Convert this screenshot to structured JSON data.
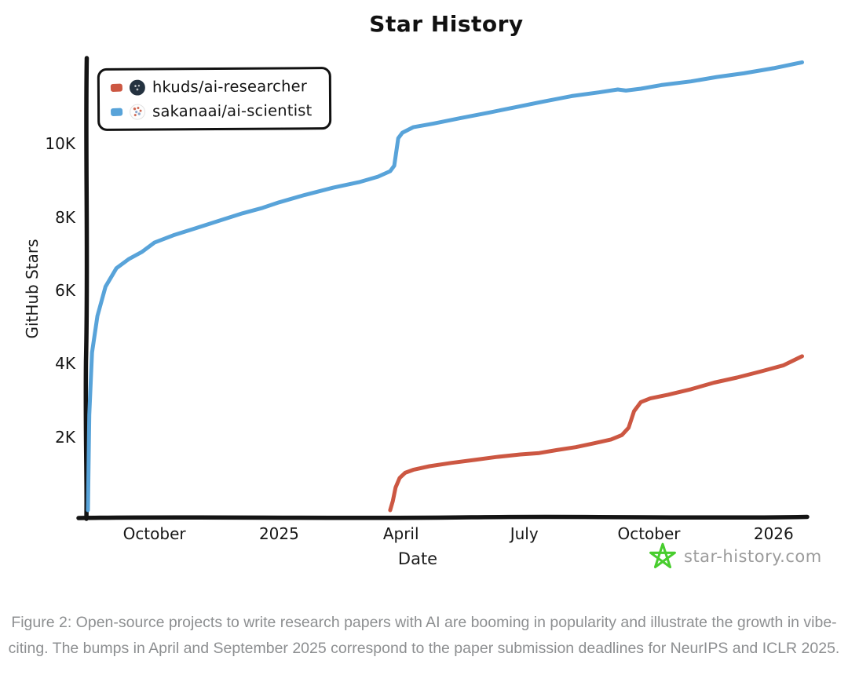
{
  "page": {
    "background": "#ffffff"
  },
  "chart_data": {
    "type": "line",
    "title": "Star History",
    "xlabel": "Date",
    "ylabel": "GitHub Stars",
    "grid": false,
    "legend_position": "top-left",
    "x_domain": [
      "2024-08-13",
      "2026-01-24"
    ],
    "y_domain": [
      0,
      12550
    ],
    "y_ticks": [
      {
        "label": "2K",
        "value": 2000
      },
      {
        "label": "4K",
        "value": 4000
      },
      {
        "label": "6K",
        "value": 6000
      },
      {
        "label": "8K",
        "value": 8000
      },
      {
        "label": "10K",
        "value": 10000
      }
    ],
    "x_ticks": [
      {
        "label": "October",
        "date": "2024-10-01"
      },
      {
        "label": "2025",
        "date": "2025-01-01"
      },
      {
        "label": "April",
        "date": "2025-04-01"
      },
      {
        "label": "July",
        "date": "2025-07-01"
      },
      {
        "label": "October",
        "date": "2025-10-01"
      },
      {
        "label": "2026",
        "date": "2026-01-01"
      }
    ],
    "series": [
      {
        "name": "hkuds/ai-researcher",
        "color": "#cc5742",
        "points": [
          [
            "2025-03-24",
            0
          ],
          [
            "2025-03-26",
            250
          ],
          [
            "2025-03-28",
            620
          ],
          [
            "2025-03-31",
            880
          ],
          [
            "2025-04-04",
            1020
          ],
          [
            "2025-04-10",
            1100
          ],
          [
            "2025-04-22",
            1200
          ],
          [
            "2025-05-08",
            1290
          ],
          [
            "2025-05-25",
            1370
          ],
          [
            "2025-06-10",
            1450
          ],
          [
            "2025-06-28",
            1520
          ],
          [
            "2025-07-12",
            1560
          ],
          [
            "2025-07-25",
            1640
          ],
          [
            "2025-08-08",
            1720
          ],
          [
            "2025-08-22",
            1830
          ],
          [
            "2025-09-03",
            1930
          ],
          [
            "2025-09-11",
            2050
          ],
          [
            "2025-09-16",
            2250
          ],
          [
            "2025-09-20",
            2700
          ],
          [
            "2025-09-25",
            2950
          ],
          [
            "2025-10-02",
            3050
          ],
          [
            "2025-10-15",
            3150
          ],
          [
            "2025-11-01",
            3300
          ],
          [
            "2025-11-18",
            3480
          ],
          [
            "2025-12-05",
            3620
          ],
          [
            "2025-12-22",
            3780
          ],
          [
            "2026-01-08",
            3950
          ],
          [
            "2026-01-22",
            4200
          ]
        ]
      },
      {
        "name": "sakanaai/ai-scientist",
        "color": "#58a3d9",
        "points": [
          [
            "2024-08-13",
            0
          ],
          [
            "2024-08-14",
            2600
          ],
          [
            "2024-08-16",
            4300
          ],
          [
            "2024-08-20",
            5300
          ],
          [
            "2024-08-26",
            6100
          ],
          [
            "2024-09-03",
            6600
          ],
          [
            "2024-09-12",
            6850
          ],
          [
            "2024-09-22",
            7050
          ],
          [
            "2024-10-01",
            7300
          ],
          [
            "2024-10-15",
            7500
          ],
          [
            "2024-11-01",
            7700
          ],
          [
            "2024-11-18",
            7900
          ],
          [
            "2024-12-05",
            8100
          ],
          [
            "2024-12-20",
            8250
          ],
          [
            "2025-01-01",
            8400
          ],
          [
            "2025-01-20",
            8600
          ],
          [
            "2025-02-10",
            8800
          ],
          [
            "2025-03-01",
            8950
          ],
          [
            "2025-03-15",
            9100
          ],
          [
            "2025-03-24",
            9250
          ],
          [
            "2025-03-27",
            9400
          ],
          [
            "2025-03-30",
            10150
          ],
          [
            "2025-04-02",
            10300
          ],
          [
            "2025-04-10",
            10450
          ],
          [
            "2025-04-25",
            10550
          ],
          [
            "2025-05-15",
            10700
          ],
          [
            "2025-06-05",
            10850
          ],
          [
            "2025-06-25",
            11000
          ],
          [
            "2025-07-15",
            11150
          ],
          [
            "2025-08-05",
            11300
          ],
          [
            "2025-08-25",
            11400
          ],
          [
            "2025-09-08",
            11480
          ],
          [
            "2025-09-14",
            11450
          ],
          [
            "2025-09-25",
            11500
          ],
          [
            "2025-10-10",
            11600
          ],
          [
            "2025-11-01",
            11700
          ],
          [
            "2025-11-20",
            11820
          ],
          [
            "2025-12-10",
            11920
          ],
          [
            "2026-01-01",
            12060
          ],
          [
            "2026-01-22",
            12220
          ]
        ]
      }
    ]
  },
  "watermark": {
    "text": "star-history.com",
    "star_color": "#48cd2e",
    "text_color": "#9b9b9b"
  },
  "caption": {
    "text": "Figure 2: Open-source projects to write research papers with AI are booming in popularity and illustrate the growth in vibe-citing. The bumps in April and September 2025 correspond to the paper submission deadlines for NeurIPS and ICLR 2025."
  },
  "icons": {
    "hkuds_avatar": "dark-org-avatar",
    "sakanaai_avatar": "speckled-org-avatar",
    "star_logo": "green-star-outline"
  }
}
